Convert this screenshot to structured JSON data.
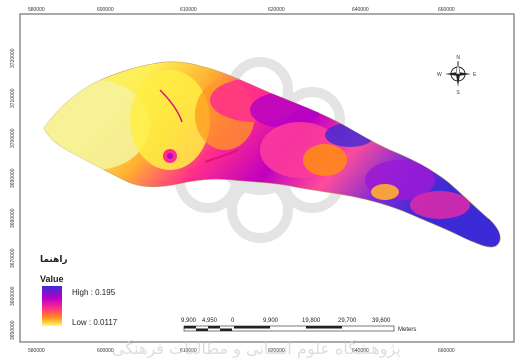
{
  "map": {
    "colors": {
      "background": "#ffffff",
      "high": "#3b2bd6",
      "mid_high": "#b400c8",
      "mid": "#ff2d8c",
      "mid_low": "#ff8a1a",
      "low": "#ffff66",
      "pale": "#f4f08a"
    },
    "x_ticks": [
      "580000",
      "600000",
      "610000",
      "620000",
      "640000",
      "660000"
    ],
    "y_ticks": [
      "3720000",
      "3710000",
      "3700000",
      "3690000",
      "3680000",
      "3670000",
      "3660000",
      "3650000"
    ],
    "legend": {
      "title": "راهنما",
      "subtitle": "Value",
      "high_label": "High : 0.195",
      "low_label": "Low : 0.0117"
    },
    "scale_bar": {
      "labels": [
        "9,900",
        "4,950",
        "0",
        "9,900",
        "19,800",
        "29,700",
        "39,600"
      ],
      "unit": "Meters"
    },
    "north_arrow": {
      "n": "N",
      "s": "S",
      "e": "E",
      "w": "W"
    },
    "watermark_text": "پژوهشگاه علوم انسانی و مطالعات فرهنگی"
  }
}
